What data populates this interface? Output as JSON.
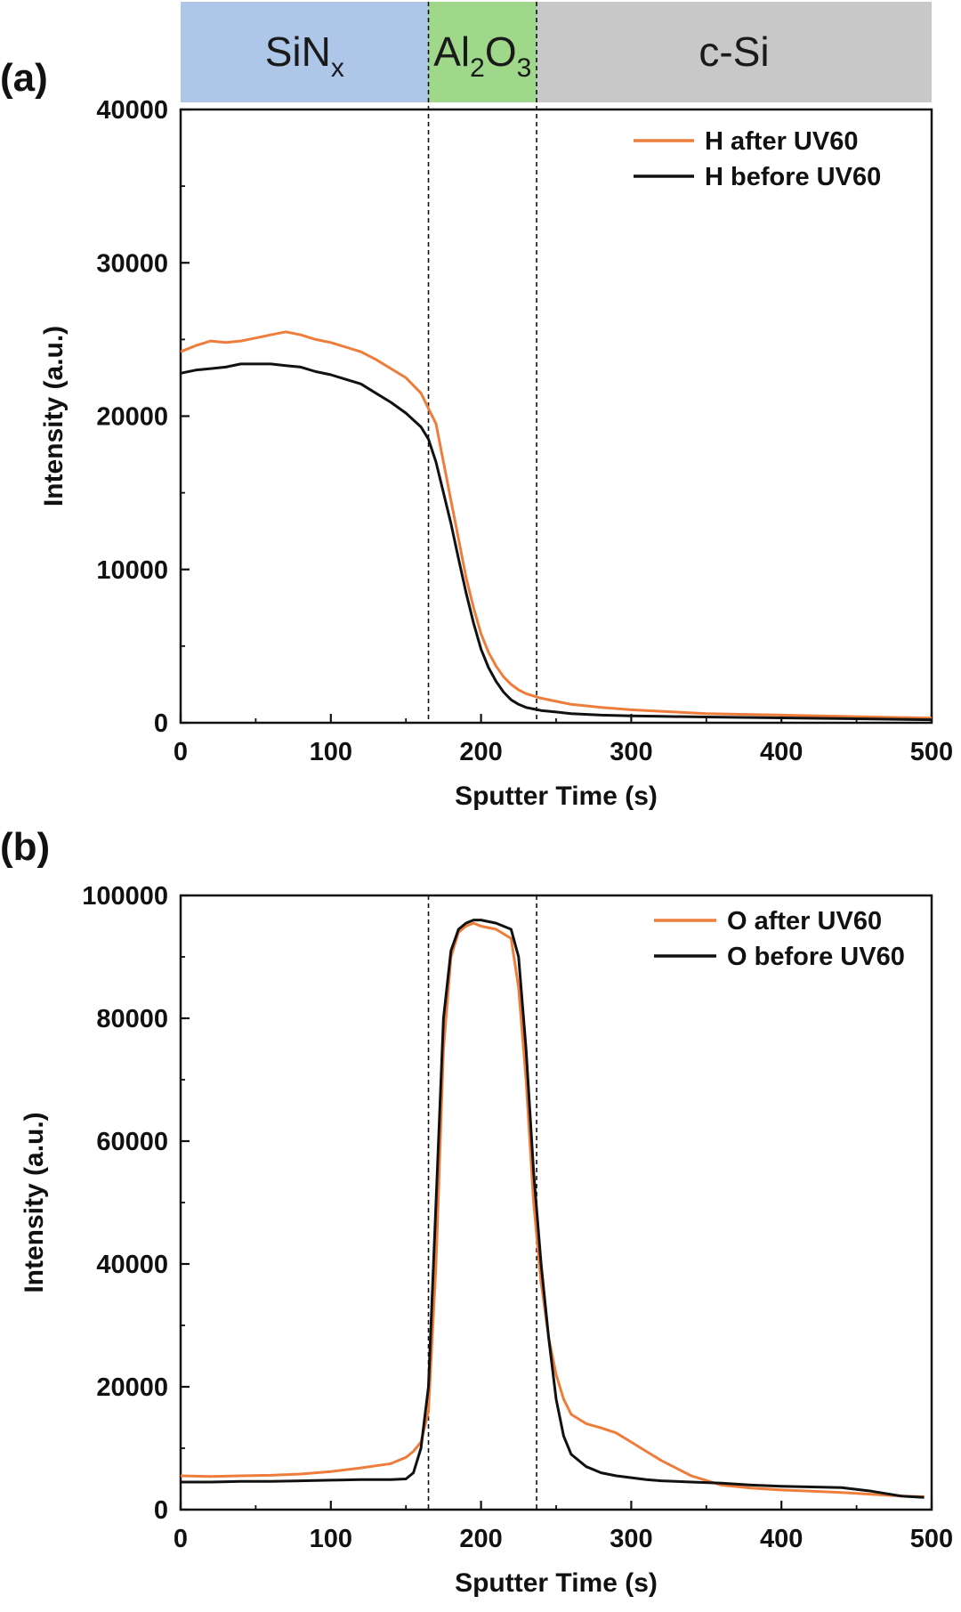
{
  "chart_data": [
    {
      "panel": "(a)",
      "type": "line",
      "xlabel": "Sputter Time (s)",
      "ylabel": "Intensity (a.u.)",
      "xlim": [
        0,
        500
      ],
      "ylim": [
        0,
        40000
      ],
      "xticks": [
        "0",
        "100",
        "200",
        "300",
        "400",
        "500"
      ],
      "yticks": [
        "0",
        "10000",
        "20000",
        "30000",
        "40000"
      ],
      "legend_position": "top-right",
      "grid": false,
      "layers": [
        {
          "name": "SiN",
          "sub": "x",
          "x_range": [
            0,
            165
          ],
          "color": "#aec6e8"
        },
        {
          "name": "Al",
          "sub": "2",
          "name2": "O",
          "sub2": "3",
          "x_range": [
            165,
            237
          ],
          "color": "#9fd88a"
        },
        {
          "name": "c-Si",
          "x_range": [
            237,
            500
          ],
          "color": "#c8c8c8"
        }
      ],
      "vlines": [
        165,
        237
      ],
      "series": [
        {
          "name": "H after UV60",
          "color": "#ee7d3b",
          "x": [
            0,
            10,
            20,
            30,
            40,
            50,
            60,
            70,
            80,
            90,
            100,
            110,
            120,
            130,
            140,
            150,
            160,
            165,
            170,
            175,
            180,
            185,
            190,
            195,
            200,
            205,
            210,
            215,
            220,
            225,
            230,
            235,
            240,
            250,
            260,
            280,
            300,
            320,
            350,
            400,
            450,
            500
          ],
          "y": [
            24200,
            24600,
            24900,
            24800,
            24900,
            25100,
            25300,
            25500,
            25300,
            25000,
            24800,
            24500,
            24200,
            23700,
            23100,
            22500,
            21500,
            20500,
            19500,
            17000,
            14500,
            12000,
            9500,
            7500,
            5800,
            4600,
            3700,
            3000,
            2500,
            2150,
            1900,
            1750,
            1600,
            1400,
            1200,
            1000,
            850,
            750,
            600,
            500,
            400,
            300
          ]
        },
        {
          "name": "H before UV60",
          "color": "#111111",
          "x": [
            0,
            10,
            20,
            30,
            40,
            50,
            60,
            70,
            80,
            90,
            100,
            110,
            120,
            130,
            140,
            150,
            160,
            165,
            170,
            175,
            180,
            185,
            190,
            195,
            200,
            205,
            210,
            215,
            220,
            225,
            230,
            235,
            240,
            250,
            260,
            280,
            300,
            320,
            350,
            400,
            450,
            500
          ],
          "y": [
            22800,
            23000,
            23100,
            23200,
            23400,
            23400,
            23400,
            23300,
            23200,
            22900,
            22700,
            22400,
            22100,
            21500,
            20900,
            20200,
            19300,
            18500,
            17000,
            15000,
            13000,
            10700,
            8500,
            6500,
            4800,
            3600,
            2700,
            2000,
            1500,
            1200,
            1000,
            900,
            800,
            700,
            600,
            500,
            450,
            420,
            380,
            320,
            260,
            200
          ]
        }
      ]
    },
    {
      "panel": "(b)",
      "type": "line",
      "xlabel": "Sputter Time (s)",
      "ylabel": "Intensity (a.u.)",
      "xlim": [
        0,
        500
      ],
      "ylim": [
        0,
        100000
      ],
      "xticks": [
        "0",
        "100",
        "200",
        "300",
        "400",
        "500"
      ],
      "yticks": [
        "0",
        "20000",
        "40000",
        "60000",
        "80000",
        "100000"
      ],
      "legend_position": "top-right",
      "grid": false,
      "vlines": [
        165,
        237
      ],
      "series": [
        {
          "name": "O after UV60",
          "color": "#ee7d3b",
          "x": [
            0,
            20,
            40,
            60,
            80,
            100,
            120,
            140,
            150,
            155,
            160,
            165,
            170,
            175,
            180,
            185,
            190,
            195,
            200,
            210,
            220,
            225,
            230,
            235,
            240,
            245,
            250,
            255,
            260,
            270,
            280,
            290,
            300,
            310,
            320,
            340,
            360,
            380,
            400,
            420,
            440,
            460,
            480,
            495
          ],
          "y": [
            5500,
            5400,
            5500,
            5600,
            5800,
            6200,
            6800,
            7500,
            8500,
            9500,
            11000,
            16000,
            40000,
            75000,
            90000,
            94000,
            95000,
            95500,
            95000,
            94500,
            93000,
            85000,
            70000,
            50000,
            37000,
            28000,
            22000,
            18000,
            15500,
            14000,
            13300,
            12500,
            11000,
            9500,
            8000,
            5500,
            4000,
            3500,
            3200,
            3000,
            2800,
            2500,
            2200,
            2100
          ]
        },
        {
          "name": "O before UV60",
          "color": "#111111",
          "x": [
            0,
            20,
            40,
            60,
            80,
            100,
            120,
            140,
            150,
            155,
            160,
            165,
            170,
            175,
            180,
            185,
            190,
            195,
            200,
            210,
            220,
            225,
            230,
            235,
            240,
            245,
            250,
            255,
            260,
            270,
            280,
            290,
            300,
            310,
            320,
            340,
            360,
            380,
            400,
            420,
            440,
            460,
            480,
            495
          ],
          "y": [
            4500,
            4500,
            4600,
            4600,
            4700,
            4800,
            4900,
            4900,
            5000,
            6000,
            10000,
            20000,
            50000,
            80000,
            91000,
            94500,
            95500,
            96000,
            96000,
            95500,
            94500,
            90000,
            75000,
            55000,
            40000,
            28000,
            18000,
            12000,
            9000,
            7000,
            6000,
            5500,
            5200,
            4900,
            4700,
            4500,
            4300,
            4000,
            3800,
            3700,
            3600,
            3000,
            2200,
            2000
          ]
        }
      ]
    }
  ]
}
